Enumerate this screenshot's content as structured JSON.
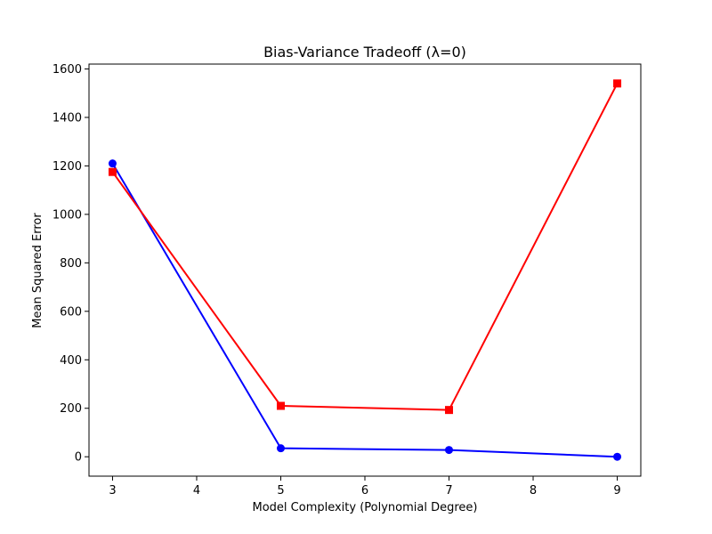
{
  "chart_data": {
    "type": "line",
    "title": "Bias-Variance Tradeoff (λ=0)",
    "xlabel": "Model Complexity (Polynomial Degree)",
    "ylabel": "Mean Squared Error",
    "x": [
      3,
      5,
      7,
      9
    ],
    "xlim": [
      2.72,
      9.28
    ],
    "ylim": [
      -80,
      1620
    ],
    "xticks": [
      3,
      4,
      5,
      6,
      7,
      8,
      9
    ],
    "yticks": [
      0,
      200,
      400,
      600,
      800,
      1000,
      1200,
      1400,
      1600
    ],
    "grid": false,
    "series": [
      {
        "color": "#0000ff",
        "marker": "circle",
        "values": [
          1210,
          35,
          28,
          0
        ]
      },
      {
        "color": "#ff0000",
        "marker": "square",
        "values": [
          1175,
          210,
          193,
          1540
        ]
      }
    ]
  }
}
